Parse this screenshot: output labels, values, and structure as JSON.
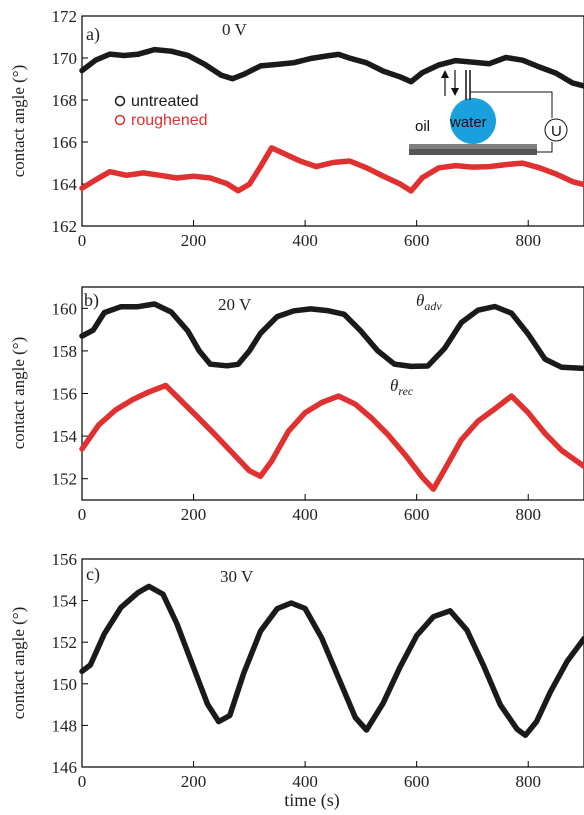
{
  "chart_data": [
    {
      "type": "line",
      "panel_label": "a)",
      "annotation": "0 V",
      "ylabel": "contact angle (°)",
      "xlabel": "",
      "xlim": [
        0,
        900
      ],
      "ylim": [
        162,
        172
      ],
      "xticks": [
        "0",
        "200",
        "400",
        "600",
        "800"
      ],
      "yticks": [
        "162",
        "164",
        "166",
        "168",
        "170",
        "172"
      ],
      "legend": [
        "untreated",
        "roughened"
      ],
      "legend_position": "left",
      "inset_labels": {
        "oil": "oil",
        "water": "water",
        "voltage": "U"
      },
      "colors": {
        "untreated": "#1a1a1a",
        "roughened": "#e03030",
        "droplet": "#1aa0dc"
      },
      "series": [
        {
          "name": "untreated",
          "x": [
            0,
            25,
            50,
            75,
            100,
            130,
            160,
            190,
            220,
            250,
            270,
            290,
            320,
            350,
            380,
            410,
            440,
            460,
            480,
            510,
            540,
            570,
            590,
            610,
            640,
            670,
            700,
            730,
            760,
            790,
            820,
            850,
            880,
            900
          ],
          "y": [
            169.4,
            169.9,
            170.2,
            170.1,
            170.2,
            170.4,
            170.3,
            170.1,
            169.7,
            169.2,
            169.0,
            169.2,
            169.6,
            169.7,
            169.8,
            170.0,
            170.1,
            170.2,
            170.0,
            169.8,
            169.4,
            169.1,
            168.9,
            169.3,
            169.7,
            169.9,
            169.8,
            169.7,
            170.0,
            169.9,
            169.6,
            169.3,
            168.8,
            168.7
          ]
        },
        {
          "name": "roughened",
          "x": [
            0,
            25,
            50,
            80,
            110,
            140,
            170,
            200,
            230,
            260,
            280,
            300,
            320,
            340,
            360,
            390,
            420,
            450,
            480,
            510,
            540,
            570,
            590,
            610,
            640,
            670,
            700,
            730,
            760,
            790,
            820,
            850,
            880,
            900
          ],
          "y": [
            163.8,
            164.2,
            164.6,
            164.4,
            164.5,
            164.4,
            164.3,
            164.4,
            164.3,
            164.0,
            163.7,
            164.0,
            164.8,
            165.7,
            165.5,
            165.1,
            164.8,
            165.0,
            165.1,
            164.8,
            164.4,
            164.0,
            163.7,
            164.3,
            164.8,
            164.9,
            164.8,
            164.8,
            164.9,
            165.0,
            164.8,
            164.5,
            164.1,
            164.0
          ]
        }
      ]
    },
    {
      "type": "line",
      "panel_label": "b)",
      "annotation": "20 V",
      "ylabel": "contact angle (°)",
      "xlabel": "",
      "xlim": [
        0,
        900
      ],
      "ylim": [
        151,
        161
      ],
      "xticks": [
        "0",
        "200",
        "400",
        "600",
        "800"
      ],
      "yticks": [
        "152",
        "154",
        "156",
        "158",
        "160"
      ],
      "theta_labels": {
        "adv": "θ",
        "adv_sub": "adv",
        "rec": "θ",
        "rec_sub": "rec"
      },
      "colors": {
        "untreated": "#1a1a1a",
        "roughened": "#e03030"
      },
      "series": [
        {
          "name": "untreated",
          "x": [
            0,
            20,
            40,
            70,
            100,
            130,
            160,
            190,
            210,
            230,
            260,
            280,
            300,
            320,
            350,
            380,
            410,
            440,
            470,
            500,
            530,
            560,
            590,
            620,
            650,
            680,
            710,
            740,
            770,
            800,
            830,
            860,
            900
          ],
          "y": [
            158.7,
            159.0,
            159.8,
            160.1,
            160.1,
            160.2,
            159.8,
            158.9,
            158.0,
            157.4,
            157.3,
            157.4,
            158.0,
            158.8,
            159.6,
            159.9,
            160.0,
            159.9,
            159.7,
            158.9,
            158.0,
            157.4,
            157.3,
            157.3,
            158.1,
            159.3,
            159.9,
            160.1,
            159.8,
            158.8,
            157.6,
            157.2,
            157.2
          ]
        },
        {
          "name": "roughened",
          "x": [
            0,
            30,
            60,
            90,
            120,
            150,
            180,
            210,
            240,
            270,
            300,
            320,
            340,
            370,
            400,
            430,
            460,
            490,
            520,
            550,
            580,
            610,
            630,
            650,
            680,
            710,
            740,
            770,
            800,
            830,
            860,
            900
          ],
          "y": [
            153.4,
            154.5,
            155.2,
            155.7,
            156.1,
            156.4,
            155.6,
            154.8,
            154.0,
            153.2,
            152.4,
            152.1,
            152.8,
            154.2,
            155.1,
            155.6,
            155.9,
            155.5,
            154.8,
            154.0,
            153.1,
            152.1,
            151.5,
            152.4,
            153.8,
            154.7,
            155.3,
            155.9,
            155.1,
            154.1,
            153.3,
            152.6
          ]
        }
      ]
    },
    {
      "type": "line",
      "panel_label": "c)",
      "annotation": "30 V",
      "ylabel": "contact angle (°)",
      "xlabel": "time (s)",
      "xlim": [
        0,
        900
      ],
      "ylim": [
        146,
        156
      ],
      "xticks": [
        "0",
        "200",
        "400",
        "600",
        "800"
      ],
      "yticks": [
        "146",
        "148",
        "150",
        "152",
        "154",
        "156"
      ],
      "colors": {
        "untreated": "#1a1a1a"
      },
      "series": [
        {
          "name": "untreated",
          "x": [
            0,
            15,
            40,
            70,
            100,
            120,
            145,
            170,
            200,
            225,
            245,
            265,
            290,
            320,
            350,
            375,
            400,
            430,
            460,
            490,
            510,
            540,
            570,
            600,
            630,
            660,
            690,
            720,
            750,
            780,
            795,
            815,
            840,
            870,
            900
          ],
          "y": [
            150.6,
            150.9,
            152.4,
            153.7,
            154.4,
            154.7,
            154.3,
            152.9,
            150.8,
            149.0,
            148.2,
            148.5,
            150.5,
            152.5,
            153.6,
            153.9,
            153.6,
            152.2,
            150.3,
            148.4,
            147.8,
            149.1,
            150.8,
            152.3,
            153.2,
            153.5,
            152.6,
            150.9,
            149.0,
            147.8,
            147.5,
            148.2,
            149.6,
            151.1,
            152.2
          ]
        }
      ]
    }
  ]
}
